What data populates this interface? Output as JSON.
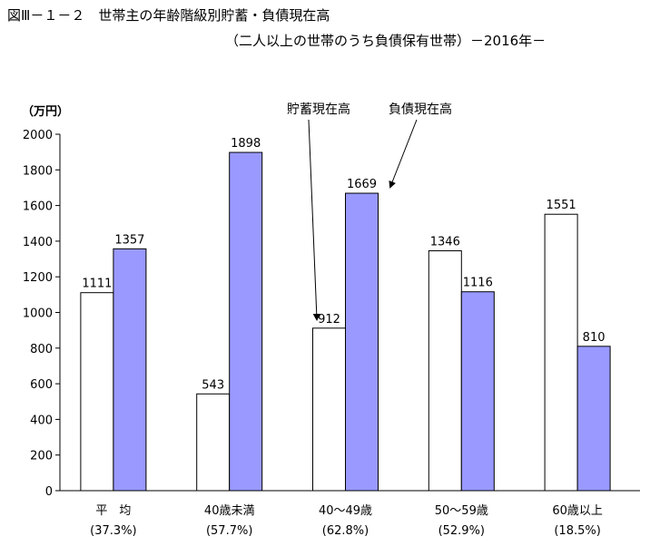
{
  "chart_data": {
    "type": "bar",
    "title": "図Ⅲ－１－２　世帯主の年齢階級別貯蓄・負債現在高",
    "subtitle": "（二人以上の世帯のうち負債保有世帯）－2016年－",
    "ylabel": "（万円）",
    "ylim": [
      0,
      2000
    ],
    "yticks": [
      0,
      200,
      400,
      600,
      800,
      1000,
      1200,
      1400,
      1600,
      1800,
      2000
    ],
    "categories": [
      "平　均",
      "40歳未満",
      "40～49歳",
      "50～59歳",
      "60歳以上"
    ],
    "category_sublabels": [
      "(37.3%)",
      "(57.7%)",
      "(62.8%)",
      "(52.9%)",
      "(18.5%)"
    ],
    "series": [
      {
        "name": "貯蓄現在高",
        "values": [
          1111,
          543,
          912,
          1346,
          1551
        ],
        "color": "#ffffff"
      },
      {
        "name": "負債現在高",
        "values": [
          1357,
          1898,
          1669,
          1116,
          810
        ],
        "color": "#9999ff"
      }
    ],
    "grid": false,
    "legend": "callout annotations with arrows"
  }
}
